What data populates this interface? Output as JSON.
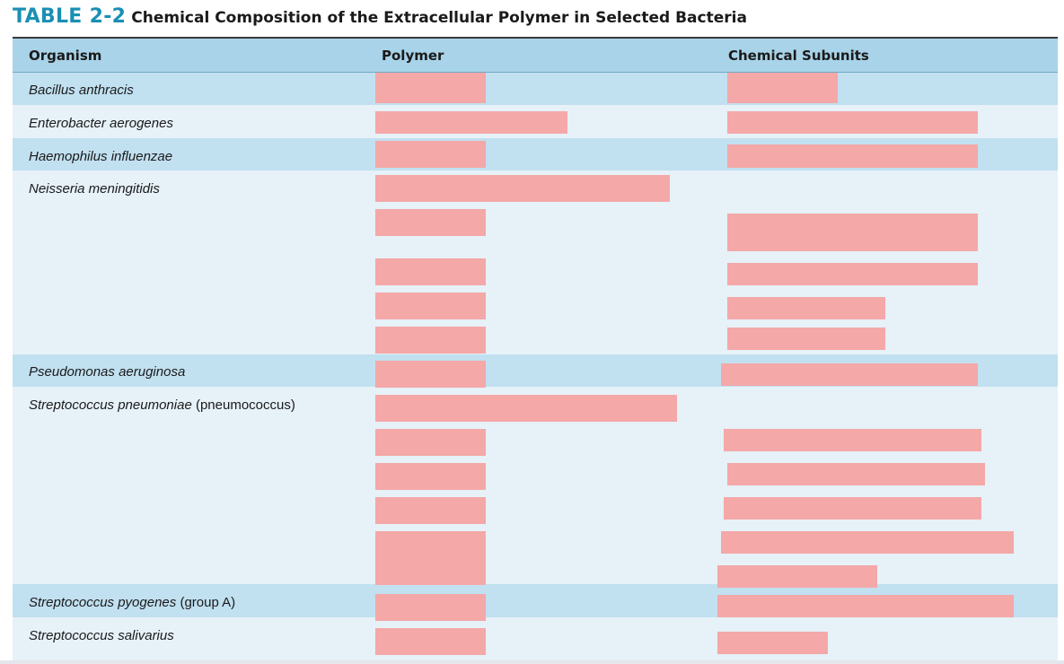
{
  "title": {
    "number": "TABLE 2-2",
    "text": "Chemical Composition of the Extracellular Polymer in Selected Bacteria"
  },
  "table": {
    "headers": [
      "Organism",
      "Polymer",
      "Chemical Subunits"
    ],
    "rows": [
      {
        "organism": "Bacillus anthracis",
        "qualifier": ""
      },
      {
        "organism": "Enterobacter aerogenes",
        "qualifier": ""
      },
      {
        "organism": "Haemophilus influenzae",
        "qualifier": ""
      },
      {
        "organism": "Neisseria meningitidis",
        "qualifier": ""
      },
      {
        "organism": "Pseudomonas aeruginosa",
        "qualifier": ""
      },
      {
        "organism": "Streptococcus pneumoniae",
        "qualifier": "(pneumococcus)"
      },
      {
        "organism": "Streptococcus pyogenes",
        "qualifier": "(group A)"
      },
      {
        "organism": "Streptococcus salivarius",
        "qualifier": ""
      }
    ],
    "redacted_cells": true
  },
  "colors": {
    "accent": "#1a8fb3",
    "header_band": "#a8d3e8",
    "dark_band": "#c1e0f0",
    "light_band": "#e6f1f8",
    "redaction": "#f4a8a8"
  }
}
